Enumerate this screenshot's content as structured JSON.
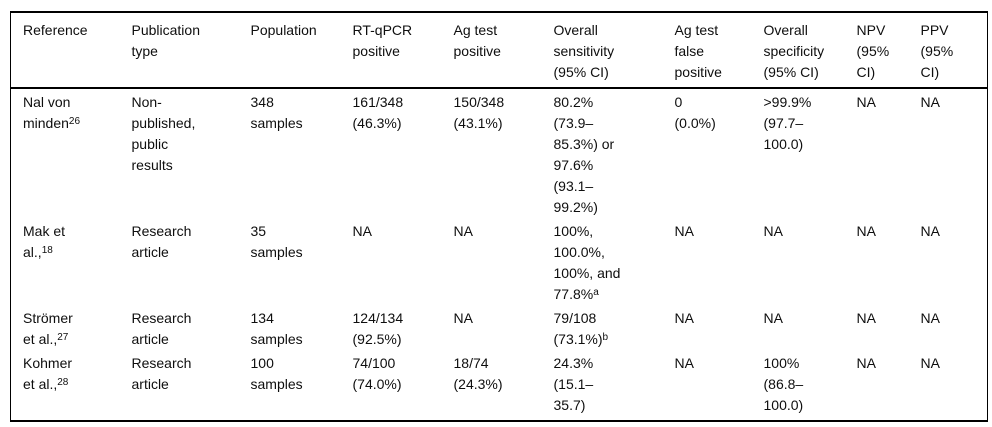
{
  "colors": {
    "background": "#ffffff",
    "text": "#0e0e0e",
    "rule": "#000000"
  },
  "table": {
    "headers": [
      {
        "lines": [
          [
            "Reference"
          ]
        ]
      },
      {
        "lines": [
          [
            "Publication"
          ],
          [
            "type"
          ]
        ]
      },
      {
        "lines": [
          [
            "Population"
          ]
        ]
      },
      {
        "lines": [
          [
            "RT-qPCR"
          ],
          [
            "positive"
          ]
        ]
      },
      {
        "lines": [
          [
            "Ag test"
          ],
          [
            "positive"
          ]
        ]
      },
      {
        "lines": [
          [
            "Overall"
          ],
          [
            "sensitivity"
          ],
          [
            "(95% CI)"
          ]
        ]
      },
      {
        "lines": [
          [
            "Ag test"
          ],
          [
            "false"
          ],
          [
            "positive"
          ]
        ]
      },
      {
        "lines": [
          [
            "Overall"
          ],
          [
            "specificity"
          ],
          [
            "(95% CI)"
          ]
        ]
      },
      {
        "lines": [
          [
            "NPV"
          ],
          [
            "(95%"
          ],
          [
            "CI)"
          ]
        ]
      },
      {
        "lines": [
          [
            "PPV"
          ],
          [
            "(95%"
          ],
          [
            "CI)"
          ]
        ]
      }
    ],
    "rows": [
      {
        "cells": [
          {
            "lines": [
              [
                "Nal von"
              ],
              [
                "minden",
                {
                  "sup": "26"
                }
              ]
            ]
          },
          {
            "lines": [
              [
                "Non-"
              ],
              [
                "published,"
              ],
              [
                "public"
              ],
              [
                "results"
              ]
            ]
          },
          {
            "lines": [
              [
                "348"
              ],
              [
                "samples"
              ]
            ]
          },
          {
            "lines": [
              [
                "161/348"
              ],
              [
                "(46.3%)"
              ]
            ]
          },
          {
            "lines": [
              [
                "150/348"
              ],
              [
                "(43.1%)"
              ]
            ]
          },
          {
            "lines": [
              [
                "80.2%"
              ],
              [
                "(73.9–"
              ],
              [
                "85.3%) or"
              ],
              [
                "97.6%"
              ],
              [
                "(93.1–"
              ],
              [
                "99.2%)"
              ]
            ]
          },
          {
            "lines": [
              [
                "0"
              ],
              [
                "(0.0%)"
              ]
            ]
          },
          {
            "lines": [
              [
                ">99.9%"
              ],
              [
                "(97.7–"
              ],
              [
                "100.0)"
              ]
            ]
          },
          {
            "lines": [
              [
                "NA"
              ]
            ]
          },
          {
            "lines": [
              [
                "NA"
              ]
            ]
          }
        ]
      },
      {
        "cells": [
          {
            "lines": [
              [
                "Mak et"
              ],
              [
                "al.,",
                {
                  "sup": "18"
                }
              ]
            ]
          },
          {
            "lines": [
              [
                "Research"
              ],
              [
                "article"
              ]
            ]
          },
          {
            "lines": [
              [
                "35"
              ],
              [
                "samples"
              ]
            ]
          },
          {
            "lines": [
              [
                "NA"
              ]
            ]
          },
          {
            "lines": [
              [
                "NA"
              ]
            ]
          },
          {
            "lines": [
              [
                "100%,"
              ],
              [
                "100.0%,"
              ],
              [
                "100%, and"
              ],
              [
                "77.8%",
                {
                  "sup": "a"
                }
              ]
            ]
          },
          {
            "lines": [
              [
                "NA"
              ]
            ]
          },
          {
            "lines": [
              [
                "NA"
              ]
            ]
          },
          {
            "lines": [
              [
                "NA"
              ]
            ]
          },
          {
            "lines": [
              [
                "NA"
              ]
            ]
          }
        ]
      },
      {
        "cells": [
          {
            "lines": [
              [
                "Strömer"
              ],
              [
                "et al.,",
                {
                  "sup": "27"
                }
              ]
            ]
          },
          {
            "lines": [
              [
                "Research"
              ],
              [
                "article"
              ]
            ]
          },
          {
            "lines": [
              [
                "134"
              ],
              [
                "samples"
              ]
            ]
          },
          {
            "lines": [
              [
                "124/134"
              ],
              [
                "(92.5%)"
              ]
            ]
          },
          {
            "lines": [
              [
                "NA"
              ]
            ]
          },
          {
            "lines": [
              [
                "79/108"
              ],
              [
                "(73.1%)",
                {
                  "sup": "b"
                }
              ]
            ]
          },
          {
            "lines": [
              [
                "NA"
              ]
            ]
          },
          {
            "lines": [
              [
                "NA"
              ]
            ]
          },
          {
            "lines": [
              [
                "NA"
              ]
            ]
          },
          {
            "lines": [
              [
                "NA"
              ]
            ]
          }
        ]
      },
      {
        "cells": [
          {
            "lines": [
              [
                "Kohmer"
              ],
              [
                "et al.,",
                {
                  "sup": "28"
                }
              ]
            ]
          },
          {
            "lines": [
              [
                "Research"
              ],
              [
                "article"
              ]
            ]
          },
          {
            "lines": [
              [
                "100"
              ],
              [
                "samples"
              ]
            ]
          },
          {
            "lines": [
              [
                "74/100"
              ],
              [
                "(74.0%)"
              ]
            ]
          },
          {
            "lines": [
              [
                "18/74"
              ],
              [
                "(24.3%)"
              ]
            ]
          },
          {
            "lines": [
              [
                "24.3%"
              ],
              [
                "(15.1–"
              ],
              [
                "35.7)"
              ]
            ]
          },
          {
            "lines": [
              [
                "NA"
              ]
            ]
          },
          {
            "lines": [
              [
                "100%"
              ],
              [
                "(86.8–"
              ],
              [
                "100.0)"
              ]
            ]
          },
          {
            "lines": [
              [
                "NA"
              ]
            ]
          },
          {
            "lines": [
              [
                "NA"
              ]
            ]
          }
        ]
      }
    ]
  }
}
